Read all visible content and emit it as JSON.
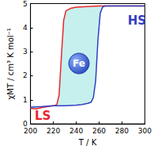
{
  "chart_data": {
    "type": "line",
    "x_label": "T / K",
    "y_label": "χMT / cm³ K mol⁻¹",
    "xlim": [
      200,
      300
    ],
    "xticks": [
      200,
      220,
      240,
      260,
      280,
      300
    ],
    "ylim": [
      0,
      5
    ],
    "yticks": [
      0,
      1,
      2,
      3,
      4,
      5
    ],
    "series": [
      {
        "color": "#e8262d",
        "x": [
          200,
          205,
          210,
          215,
          220,
          223,
          225,
          227,
          229,
          231,
          235,
          240,
          250,
          260,
          270,
          280,
          290,
          300
        ],
        "values": [
          0.65,
          0.62,
          0.68,
          0.72,
          0.75,
          0.8,
          1.2,
          2.8,
          4.3,
          4.7,
          4.8,
          4.85,
          4.88,
          4.9,
          4.9,
          4.9,
          4.9,
          4.9
        ]
      },
      {
        "color": "#2f3fc4",
        "x": [
          200,
          210,
          220,
          230,
          240,
          245,
          250,
          253,
          255,
          257,
          259,
          261,
          263,
          265,
          270,
          280,
          290,
          300
        ],
        "values": [
          0.7,
          0.72,
          0.75,
          0.75,
          0.78,
          0.8,
          0.85,
          0.9,
          1.1,
          1.8,
          3.5,
          4.6,
          4.85,
          4.9,
          4.9,
          4.9,
          4.9,
          4.9
        ]
      }
    ],
    "annotations": [
      {
        "text": "HS",
        "color": "#2f3fc4"
      },
      {
        "text": "LS",
        "color": "#e8262d"
      },
      {
        "text": "Fe",
        "color": "#ffffff"
      }
    ]
  }
}
